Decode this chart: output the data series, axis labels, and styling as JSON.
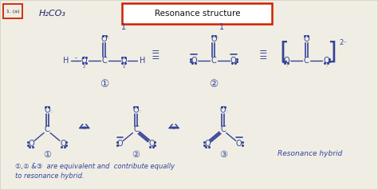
{
  "bg_color": "#d8d4c8",
  "paper_color": "#f0ede4",
  "ink_color": "#334499",
  "red_color": "#cc2200",
  "title_text": "Resonance structure",
  "label_1a": "1. (a)",
  "formula": "H₂CO₃",
  "bottom_line1": "①,② &③  are equivalent and  contribute equally",
  "bottom_line2": "to resonance hybrid.",
  "resonance_hybrid_label": "Resonance hybrid",
  "fig_width": 4.74,
  "fig_height": 2.38,
  "dpi": 100
}
